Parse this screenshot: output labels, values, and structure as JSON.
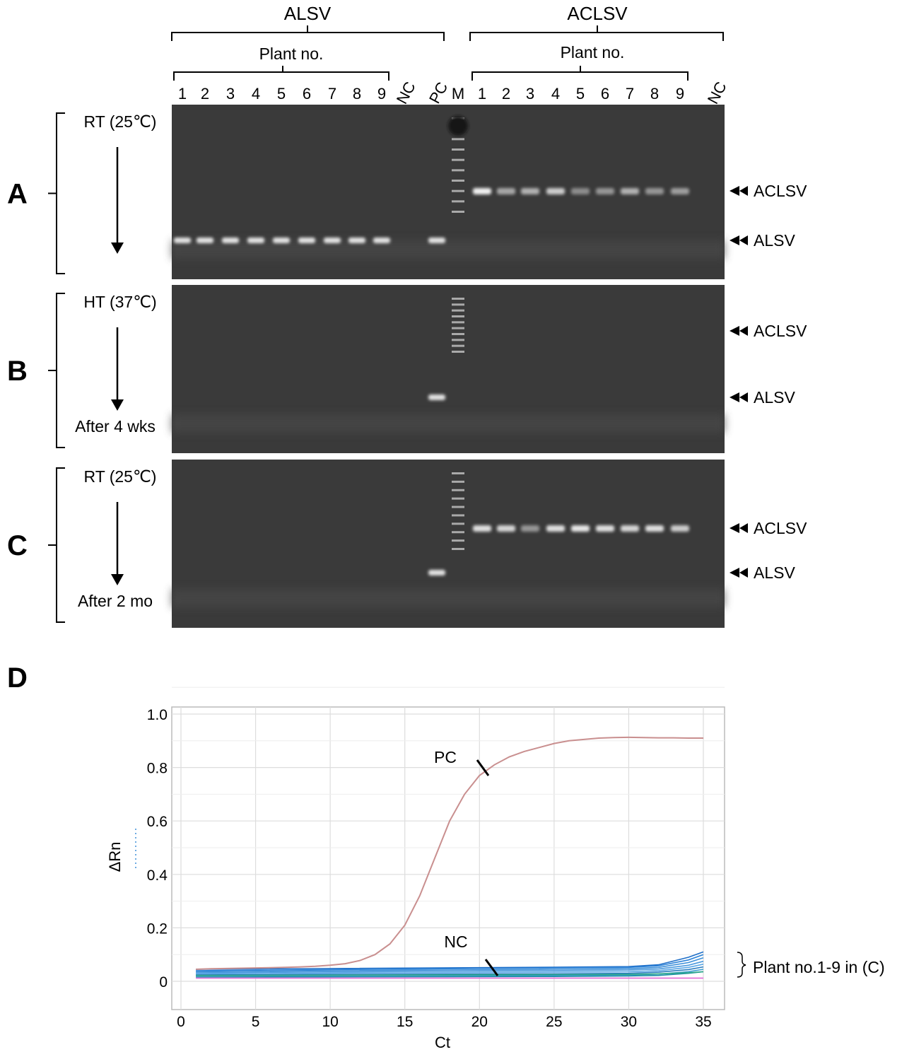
{
  "gel": {
    "alsv_group_label": "ALSV",
    "aclsv_group_label": "ACLSV",
    "plant_no_label": "Plant no.",
    "lanes": [
      "1",
      "2",
      "3",
      "4",
      "5",
      "6",
      "7",
      "8",
      "9",
      "NC",
      "PC",
      "M",
      "1",
      "2",
      "3",
      "4",
      "5",
      "6",
      "7",
      "8",
      "9",
      "NC"
    ],
    "panels": [
      {
        "letter": "A",
        "condition": "RT (25℃)",
        "duration": "",
        "markers": [
          "ACLSV",
          "ALSV"
        ],
        "alsv_band_lanes": [
          0,
          1,
          2,
          3,
          4,
          5,
          6,
          7,
          8,
          10
        ],
        "aclsv_band_intensity": [
          1.0,
          0.6,
          0.65,
          0.8,
          0.45,
          0.5,
          0.65,
          0.5,
          0.55
        ]
      },
      {
        "letter": "B",
        "condition": "HT (37℃)",
        "duration": "After 4 wks",
        "markers": [
          "ACLSV",
          "ALSV"
        ],
        "alsv_band_lanes": [
          10
        ],
        "aclsv_band_intensity": []
      },
      {
        "letter": "C",
        "condition": "RT (25℃)",
        "duration": "After 2 mo",
        "markers": [
          "ACLSV",
          "ALSV"
        ],
        "alsv_band_lanes": [
          10
        ],
        "aclsv_band_intensity": [
          0.9,
          0.85,
          0.5,
          0.9,
          0.95,
          0.9,
          0.85,
          0.9,
          0.8
        ]
      }
    ]
  },
  "colors": {
    "gel_background": "#3a3a3a",
    "band": "#f2f2f2",
    "pc_curve": "#c98f8f",
    "nc_curve": "#e070d8",
    "sample_curves": "#3d8fd8",
    "grid": "#dddddd"
  },
  "chart_data": {
    "panel_letter": "D",
    "type": "line",
    "xlabel": "Ct",
    "ylabel": "ΔRn",
    "xlim": [
      0,
      36
    ],
    "ylim": [
      -0.05,
      1.0
    ],
    "xticks": [
      "0",
      "5",
      "10",
      "15",
      "20",
      "25",
      "30",
      "35"
    ],
    "yticks": [
      "0",
      "0.2",
      "0.4",
      "0.6",
      "0.8",
      "1.0"
    ],
    "grid": true,
    "annotations": {
      "pc": "PC",
      "nc": "NC",
      "plants": "Plant no.1-9 in (C)"
    },
    "series": [
      {
        "name": "PC",
        "x": [
          1,
          2,
          3,
          4,
          5,
          6,
          7,
          8,
          9,
          10,
          11,
          12,
          13,
          14,
          15,
          16,
          17,
          18,
          19,
          20,
          21,
          22,
          23,
          24,
          25,
          26,
          27,
          28,
          29,
          30,
          31,
          32,
          33,
          34,
          35
        ],
        "y": [
          0.045,
          0.047,
          0.048,
          0.049,
          0.05,
          0.051,
          0.052,
          0.054,
          0.056,
          0.06,
          0.066,
          0.078,
          0.1,
          0.14,
          0.21,
          0.32,
          0.46,
          0.6,
          0.7,
          0.77,
          0.81,
          0.84,
          0.86,
          0.875,
          0.89,
          0.9,
          0.905,
          0.91,
          0.912,
          0.913,
          0.912,
          0.911,
          0.911,
          0.91,
          0.91
        ]
      },
      {
        "name": "NC",
        "x": [
          1,
          35
        ],
        "y": [
          0.012,
          0.012
        ]
      }
    ],
    "sample_curves": [
      {
        "x": [
          1,
          25,
          30,
          32,
          34,
          35
        ],
        "y": [
          0.045,
          0.053,
          0.055,
          0.062,
          0.09,
          0.11
        ]
      },
      {
        "x": [
          1,
          25,
          30,
          32,
          34,
          35
        ],
        "y": [
          0.04,
          0.05,
          0.052,
          0.058,
          0.08,
          0.1
        ]
      },
      {
        "x": [
          1,
          25,
          30,
          32,
          34,
          35
        ],
        "y": [
          0.036,
          0.045,
          0.047,
          0.052,
          0.07,
          0.088
        ]
      },
      {
        "x": [
          1,
          25,
          30,
          32,
          34,
          35
        ],
        "y": [
          0.032,
          0.04,
          0.042,
          0.046,
          0.06,
          0.075
        ]
      },
      {
        "x": [
          1,
          25,
          30,
          32,
          34,
          35
        ],
        "y": [
          0.028,
          0.034,
          0.036,
          0.04,
          0.052,
          0.064
        ]
      },
      {
        "x": [
          1,
          25,
          30,
          32,
          34,
          35
        ],
        "y": [
          0.024,
          0.028,
          0.03,
          0.034,
          0.044,
          0.054
        ]
      },
      {
        "x": [
          1,
          25,
          30,
          32,
          34,
          35
        ],
        "y": [
          0.02,
          0.022,
          0.024,
          0.027,
          0.036,
          0.045
        ]
      },
      {
        "x": [
          1,
          25,
          30,
          32,
          34,
          35
        ],
        "y": [
          0.016,
          0.018,
          0.02,
          0.022,
          0.03,
          0.036
        ]
      },
      {
        "x": [
          1,
          25,
          30,
          32,
          34,
          35
        ],
        "y": [
          0.022,
          0.025,
          0.026,
          0.028,
          0.032,
          0.036
        ]
      }
    ]
  }
}
